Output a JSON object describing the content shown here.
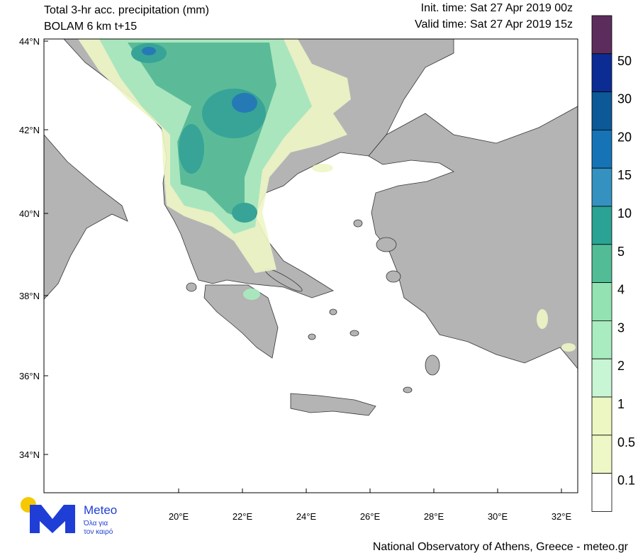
{
  "header": {
    "title_line1": "Total 3-hr acc. precipitation (mm)",
    "title_line2": "BOLAM 6 km t+15",
    "init_time": "Init. time: Sat 27 Apr 2019 00z",
    "valid_time": "Valid time: Sat 27 Apr 2019 15z"
  },
  "map": {
    "lat_labels": [
      "44°N",
      "42°N",
      "40°N",
      "38°N",
      "36°N",
      "34°N"
    ],
    "lon_labels": [
      "20°E",
      "22°E",
      "24°E",
      "26°E",
      "28°E",
      "30°E",
      "32°E"
    ]
  },
  "colorbar": {
    "colors": [
      "#5c2d5c",
      "#0c2c94",
      "#0d5896",
      "#1674b6",
      "#3592c0",
      "#2aa394",
      "#52bc96",
      "#92e2b2",
      "#a8ecbf",
      "#c8f5d4",
      "#ecf7c2",
      "#eef7c6",
      "#ffffff"
    ],
    "labels": [
      "50",
      "30",
      "20",
      "15",
      "10",
      "5",
      "4",
      "3",
      "2",
      "1",
      "0.5",
      "0.1"
    ]
  },
  "logo": {
    "name": "Meteo",
    "tagline_1": "Όλα για",
    "tagline_2": "τον καιρό"
  },
  "footer": "National Observatory of Athens, Greece - meteo.gr"
}
